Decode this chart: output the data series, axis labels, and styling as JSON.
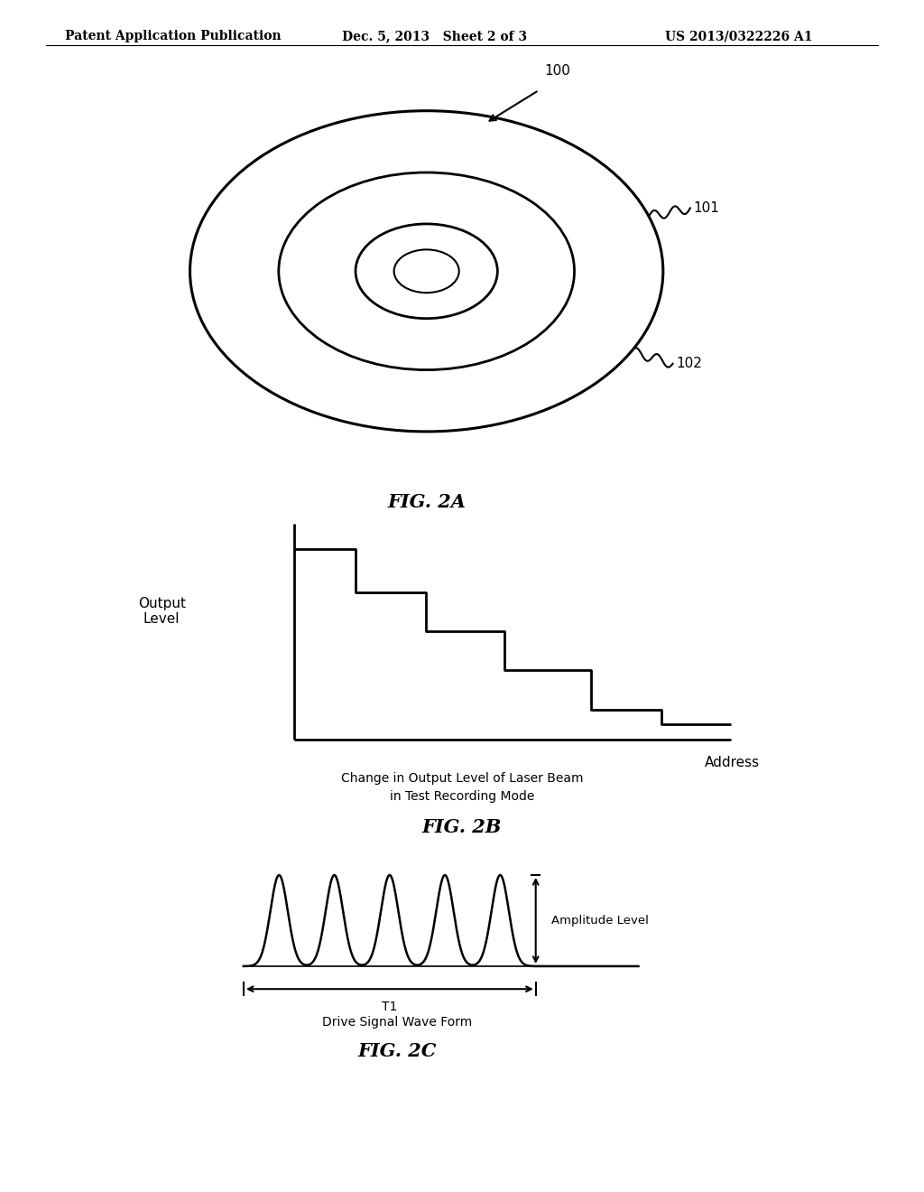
{
  "bg_color": "#ffffff",
  "header_left": "Patent Application Publication",
  "header_center": "Dec. 5, 2013   Sheet 2 of 3",
  "header_right": "US 2013/0322226 A1",
  "fig2a_label": "FIG. 2A",
  "fig2b_label": "FIG. 2B",
  "fig2c_label": "FIG. 2C",
  "label_100": "100",
  "label_101": "101",
  "label_102": "102",
  "ylabel_2b": "Output\nLevel",
  "xlabel_2b": "Address",
  "caption_2b_line1": "Change in Output Level of Laser Beam",
  "caption_2b_line2": "in Test Recording Mode",
  "amplitude_label": "Amplitude Level",
  "t1_label": "T1",
  "caption_2c": "Drive Signal Wave Form",
  "line_color": "#000000",
  "header_fontsize": 10,
  "label_fontsize": 11,
  "caption_fontsize": 10,
  "fig_label_fontsize": 15
}
